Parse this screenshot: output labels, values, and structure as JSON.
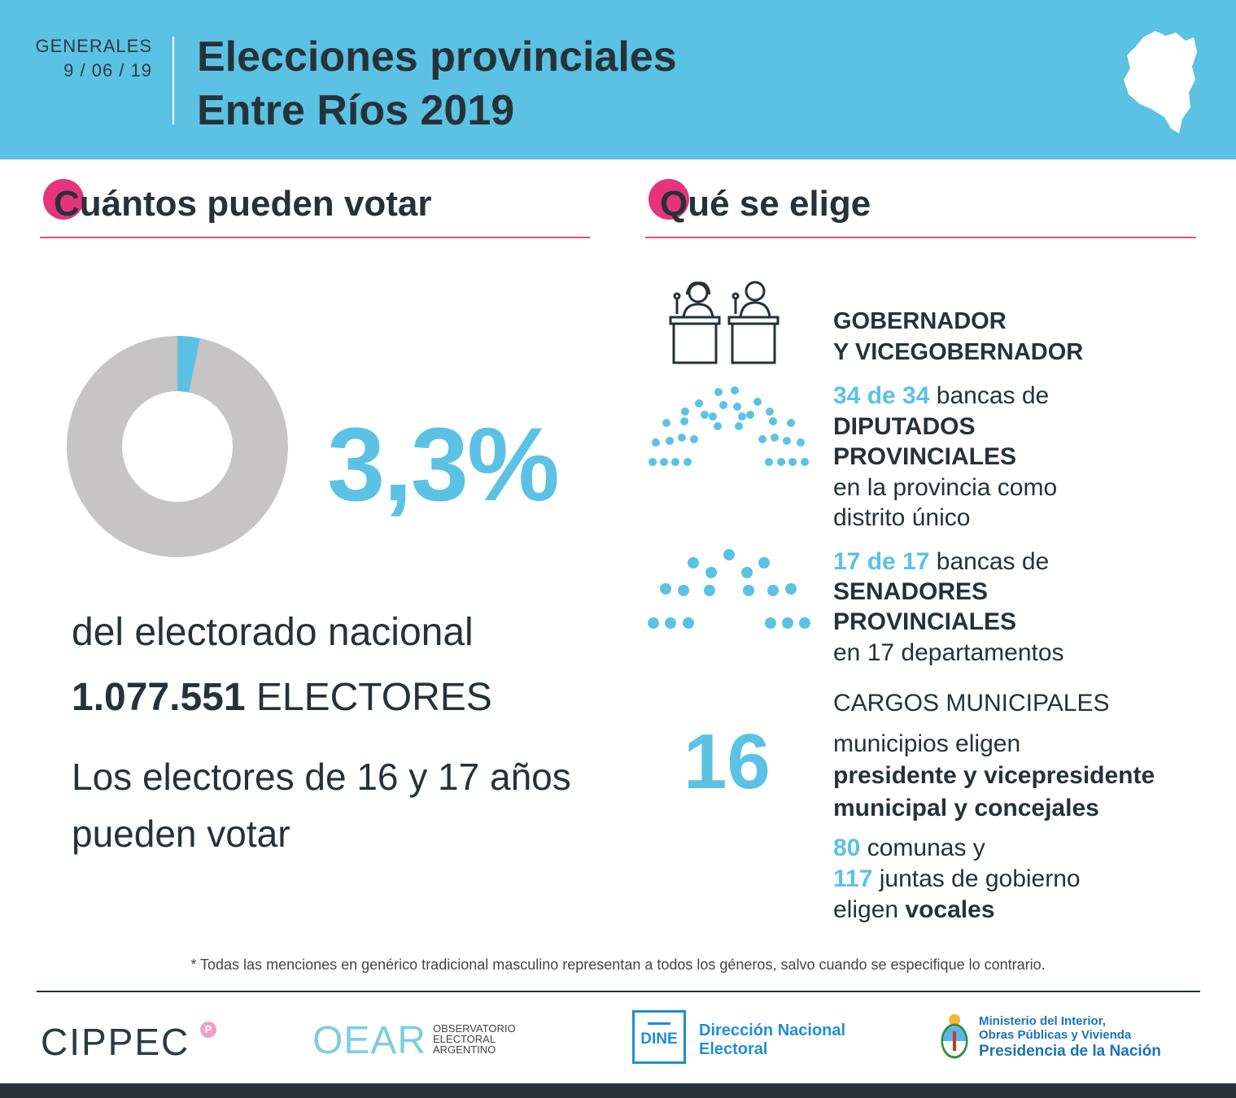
{
  "header": {
    "kicker": "GENERALES",
    "date": "9 / 06 / 19",
    "title_line1": "Elecciones provinciales",
    "title_line2": "Entre Ríos 2019",
    "map_icon": "entre-rios-map-icon"
  },
  "left": {
    "section_title": "Cuántos pueden votar",
    "percentage": "3,3%",
    "percentage_value": 3.3,
    "subtitle": "del electorado nacional",
    "electors_number": "1.077.551",
    "electors_label": "ELECTORES",
    "note_line1": "Los electores de 16 y 17 años",
    "note_line2": "pueden votar"
  },
  "right": {
    "section_title": "Qué se elige",
    "gov": {
      "line1": "GOBERNADOR",
      "line2": "Y VICEGOBERNADOR",
      "icon": "podium-candidates-icon"
    },
    "diputados": {
      "count": "34 de 34",
      "rest": "bancas de",
      "line2": "DIPUTADOS",
      "line3": "PROVINCIALES",
      "line4": "en la provincia como",
      "line5": "distrito único",
      "icon": "chamber-seats-icon"
    },
    "senadores": {
      "count": "17 de 17",
      "rest": "bancas de",
      "line2": "SENADORES",
      "line3": "PROVINCIALES",
      "line4": "en 17 departamentos",
      "icon": "senate-seats-icon"
    },
    "municipal": {
      "heading": "CARGOS MUNICIPALES",
      "number": "16",
      "line1": "municipios eligen",
      "line2": "presidente y vicepresidente",
      "line3": "municipal y concejales",
      "comunas_num": "80",
      "comunas_txt": "comunas y",
      "juntas_num": "117",
      "juntas_txt": "juntas de gobierno",
      "eligen": "eligen",
      "vocales": "vocales"
    }
  },
  "footer": {
    "note": "* Todas las menciones en genérico tradicional masculino representan a todos los géneros, salvo cuando se especifique lo contrario.",
    "cippec": "CIPPEC",
    "cippec_badge": "P",
    "oear": "OEAR",
    "oear_sub1": "OBSERVATORIO",
    "oear_sub2": "ELECTORAL",
    "oear_sub3": "ARGENTINO",
    "dine": "DINE",
    "dine_line1": "Dirección Nacional",
    "dine_line2": "Electoral",
    "min_line1": "Ministerio del Interior,",
    "min_line2": "Obras Públicas y Vivienda",
    "min_line3": "Presidencia de la Nación"
  },
  "colors": {
    "accent": "#5bc2e4",
    "pink": "#e5347a",
    "dark": "#263238",
    "gray": "#c6c4c4",
    "dine_blue": "#1d8fd2",
    "ministry_blue": "#1b72b8"
  }
}
